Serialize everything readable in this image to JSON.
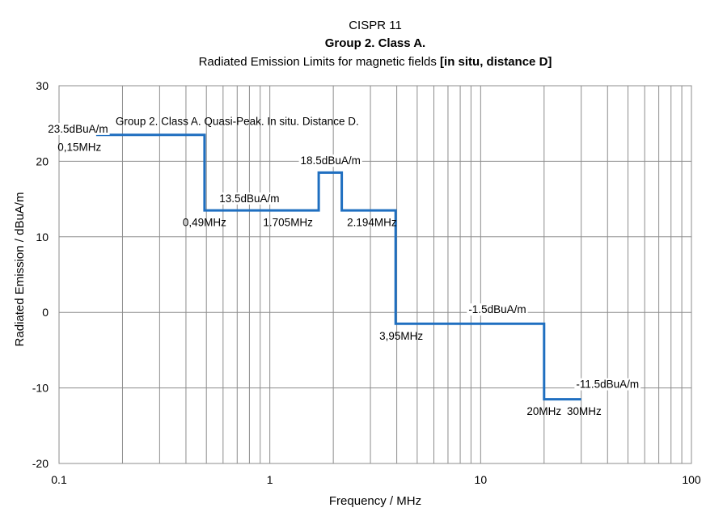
{
  "chart_data": {
    "type": "line",
    "title": "CISPR 11",
    "subtitle": "Group 2. Class A.",
    "title_line3_plain": "Radiated Emission Limits for magnetic fields ",
    "title_line3_bold": "[in situ, distance D]",
    "xlabel": "Frequency / MHz",
    "ylabel": "Radiated Emission / dBuA/m",
    "xscale": "log",
    "xlim": [
      0.1,
      100
    ],
    "ylim": [
      -20,
      30
    ],
    "xticks": [
      0.1,
      1,
      10,
      100
    ],
    "xtick_labels": [
      "0.1",
      "1",
      "10",
      "100"
    ],
    "yticks": [
      30,
      20,
      10,
      0,
      -10,
      -20
    ],
    "ytick_labels": [
      "30",
      "20",
      "10",
      "0",
      "-10",
      "-20"
    ],
    "grid": true,
    "series": [
      {
        "name": "Group 2. Class A. Quasi-Peak. In situ. Distance D.",
        "color": "#1f6fc0",
        "x": [
          0.15,
          0.49,
          0.49,
          1.705,
          1.705,
          2.194,
          2.194,
          3.95,
          3.95,
          20,
          20,
          30
        ],
        "y": [
          23.5,
          23.5,
          13.5,
          13.5,
          18.5,
          18.5,
          13.5,
          13.5,
          -1.5,
          -1.5,
          -11.5,
          -11.5
        ]
      }
    ],
    "annotations": [
      {
        "text": "Group 2. Class A. Quasi-Peak. In situ. Distance D.",
        "x": 0.7,
        "y": 24.8,
        "anchor": "middle",
        "box": false
      },
      {
        "text": "23.5dBuA/m",
        "x": 0.123,
        "y": 23.8,
        "anchor": "middle",
        "box": true
      },
      {
        "text": "0,15MHz",
        "x": 0.125,
        "y": 21.4,
        "anchor": "middle",
        "box": false
      },
      {
        "text": "18.5dBuA/m",
        "x": 1.94,
        "y": 19.6,
        "anchor": "middle",
        "box": true
      },
      {
        "text": "13.5dBuA/m",
        "x": 0.8,
        "y": 14.6,
        "anchor": "middle",
        "box": true
      },
      {
        "text": "0,49MHz",
        "x": 0.49,
        "y": 11.4,
        "anchor": "middle",
        "box": false
      },
      {
        "text": "1.705MHz",
        "x": 1.22,
        "y": 11.4,
        "anchor": "middle",
        "box": false
      },
      {
        "text": "2.194MHz",
        "x": 3.05,
        "y": 11.4,
        "anchor": "middle",
        "box": false
      },
      {
        "text": "-1.5dBuA/m",
        "x": 12.0,
        "y": -0.1,
        "anchor": "middle",
        "box": true
      },
      {
        "text": "3,95MHz",
        "x": 4.2,
        "y": -3.6,
        "anchor": "middle",
        "box": false
      },
      {
        "text": "-11.5dBuA/m",
        "x": 40.0,
        "y": -10.0,
        "anchor": "middle",
        "box": true
      },
      {
        "text": "20MHz",
        "x": 20,
        "y": -13.6,
        "anchor": "middle",
        "box": false
      },
      {
        "text": "30MHz",
        "x": 31,
        "y": -13.6,
        "anchor": "middle",
        "box": false
      }
    ],
    "legend": "none"
  }
}
